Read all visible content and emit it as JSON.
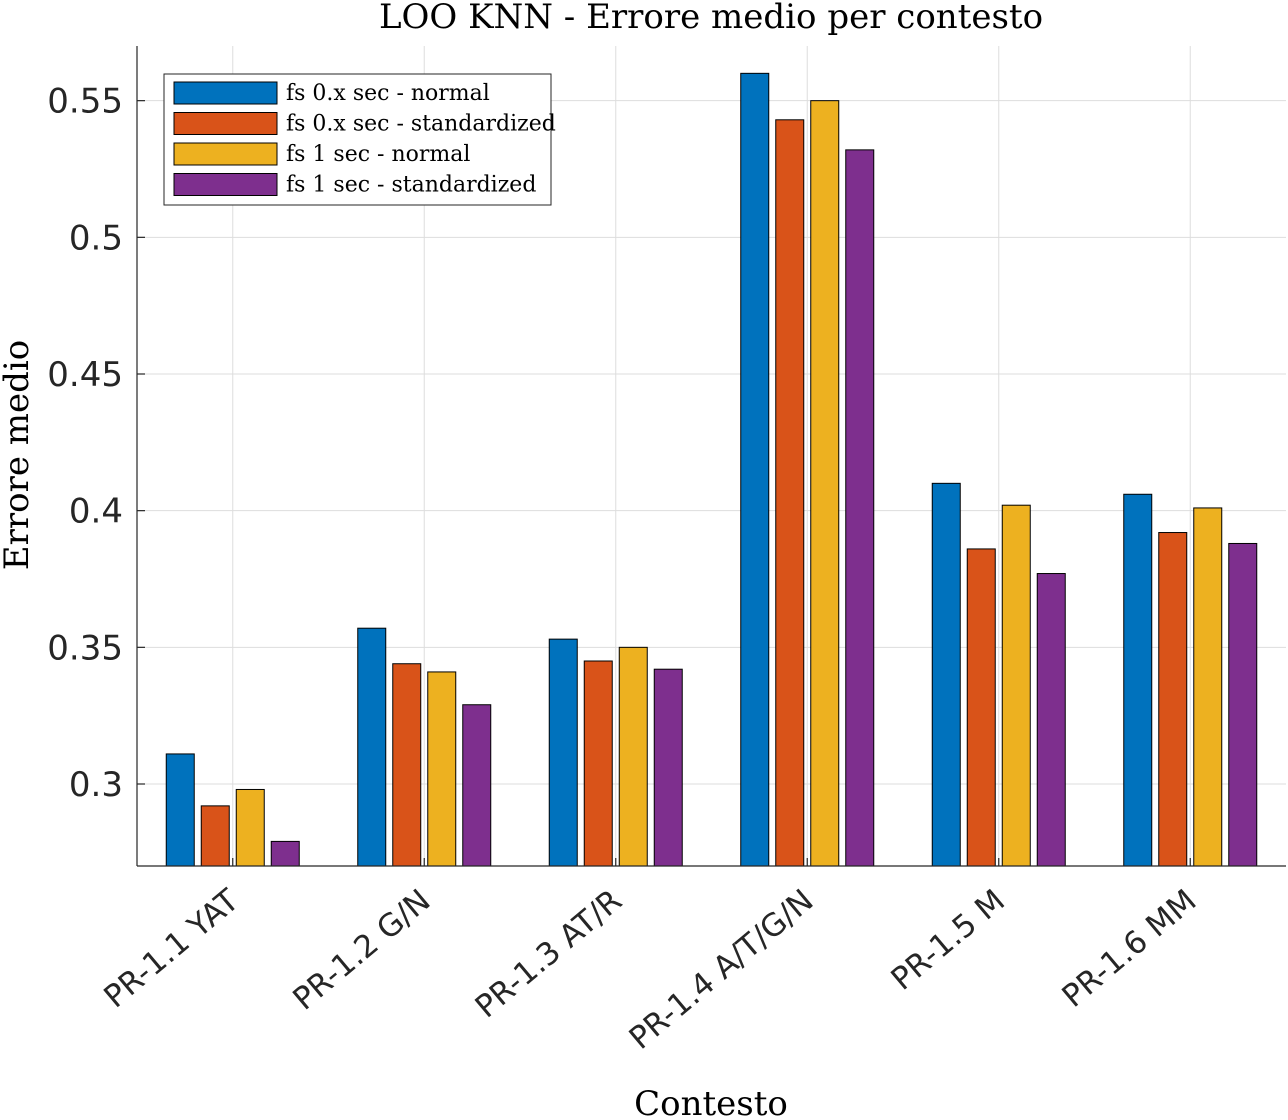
{
  "chart_data": {
    "type": "bar",
    "title": "LOO KNN - Errore medio per contesto",
    "xlabel": "Contesto",
    "ylabel": "Errore medio",
    "ylim": [
      0.27,
      0.57
    ],
    "yticks": [
      0.3,
      0.35,
      0.4,
      0.45,
      0.5,
      0.55
    ],
    "ytick_labels": [
      "0.3",
      "0.35",
      "0.4",
      "0.45",
      "0.5",
      "0.55"
    ],
    "grid": true,
    "legend_position": "top-left",
    "categories": [
      "PR-1.1 YAT",
      "PR-1.2 G/N",
      "PR-1.3 AT/R",
      "PR-1.4 A/T/G/N",
      "PR-1.5 M",
      "PR-1.6 MM"
    ],
    "series": [
      {
        "name": "fs 0.x sec - normal",
        "color": "#0072BD",
        "values": [
          0.311,
          0.357,
          0.353,
          0.56,
          0.41,
          0.406
        ]
      },
      {
        "name": "fs 0.x sec - standardized",
        "color": "#D95319",
        "values": [
          0.292,
          0.344,
          0.345,
          0.543,
          0.386,
          0.392
        ]
      },
      {
        "name": "fs 1 sec - normal",
        "color": "#EDB120",
        "values": [
          0.298,
          0.341,
          0.35,
          0.55,
          0.402,
          0.401
        ]
      },
      {
        "name": "fs 1 sec - standardized",
        "color": "#7E2F8E",
        "values": [
          0.279,
          0.329,
          0.342,
          0.532,
          0.377,
          0.388
        ]
      }
    ]
  }
}
